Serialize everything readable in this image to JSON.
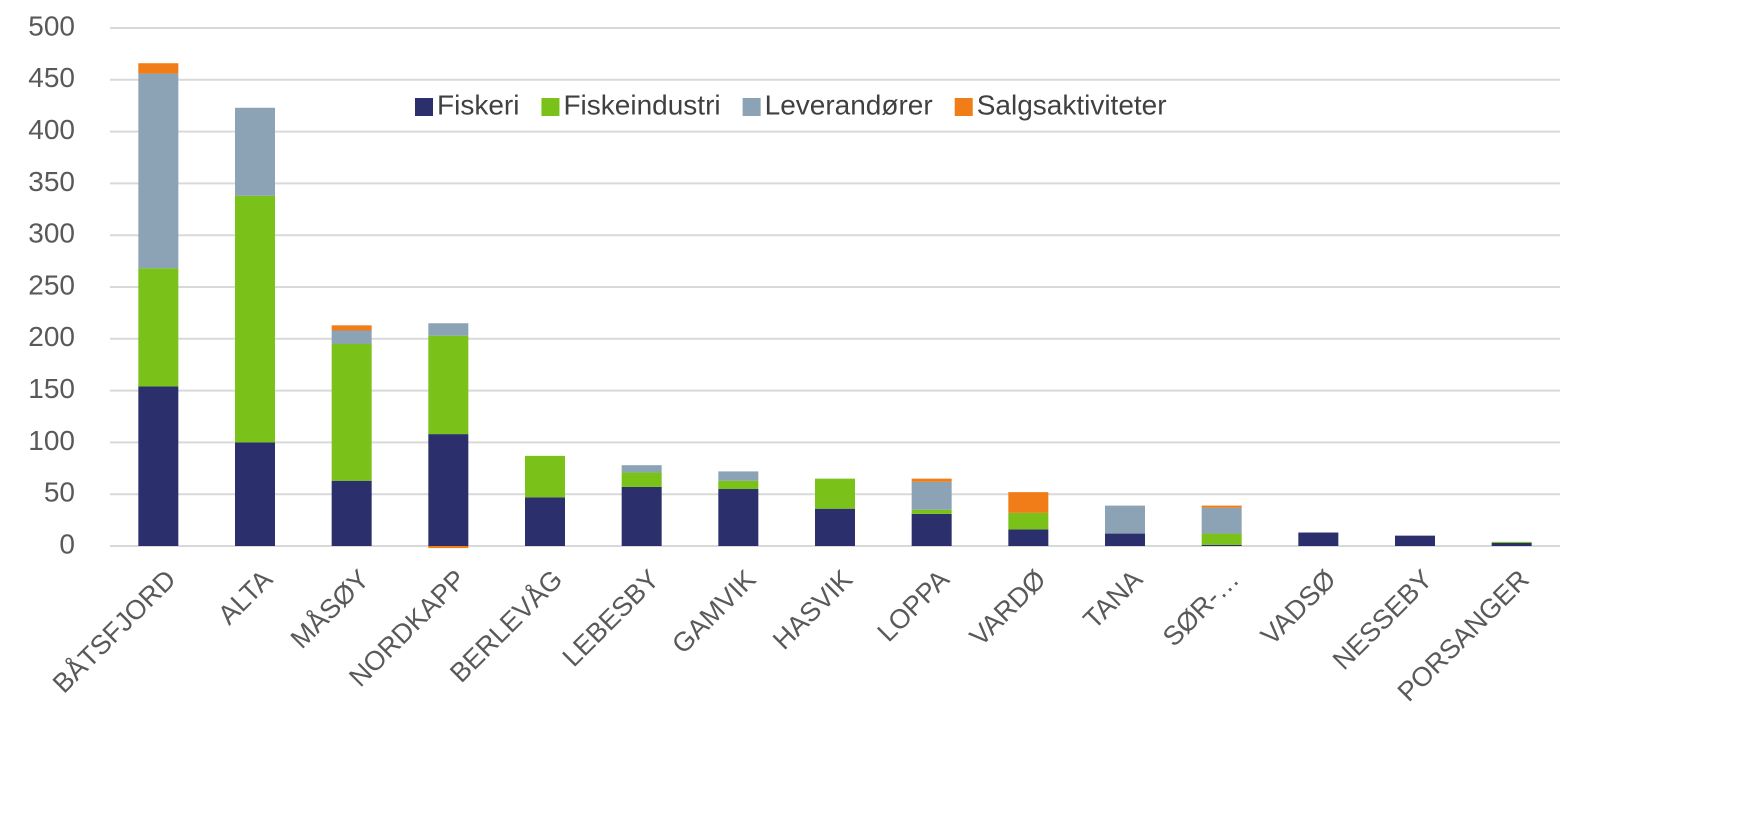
{
  "chart_data": {
    "type": "stacked_bar",
    "categories": [
      "BÅTSFJORD",
      "ALTA",
      "MÅSØY",
      "NORDKAPP",
      "BERLEVÅG",
      "LEBESBY",
      "GAMVIK",
      "HASVIK",
      "LOPPA",
      "VARDØ",
      "TANA",
      "SØR-…",
      "VADSØ",
      "NESSEBY",
      "PORSANGER"
    ],
    "series": [
      {
        "name": "Fiskeri",
        "color": "#2b2f6b",
        "values": [
          154,
          100,
          63,
          108,
          47,
          57,
          55,
          36,
          31,
          16,
          12,
          1,
          13,
          10,
          3
        ]
      },
      {
        "name": "Fiskeindustri",
        "color": "#7ac11a",
        "values": [
          114,
          238,
          132,
          95,
          40,
          14,
          8,
          29,
          4,
          16,
          0,
          11,
          0,
          0,
          1
        ]
      },
      {
        "name": "Leverandører",
        "color": "#8ba3b5",
        "values": [
          188,
          85,
          13,
          12,
          0,
          7,
          9,
          0,
          27,
          0,
          27,
          25,
          0,
          0,
          0
        ]
      },
      {
        "name": "Salgsaktiviteter",
        "color": "#f07d17",
        "values": [
          10,
          0,
          5,
          -2,
          0,
          0,
          0,
          0,
          3,
          20,
          0,
          2,
          0,
          0,
          0
        ]
      }
    ],
    "ylim": [
      0,
      500
    ],
    "yticks": [
      0,
      50,
      100,
      150,
      200,
      250,
      300,
      350,
      400,
      450,
      500
    ],
    "grid": true,
    "legend": "top"
  }
}
